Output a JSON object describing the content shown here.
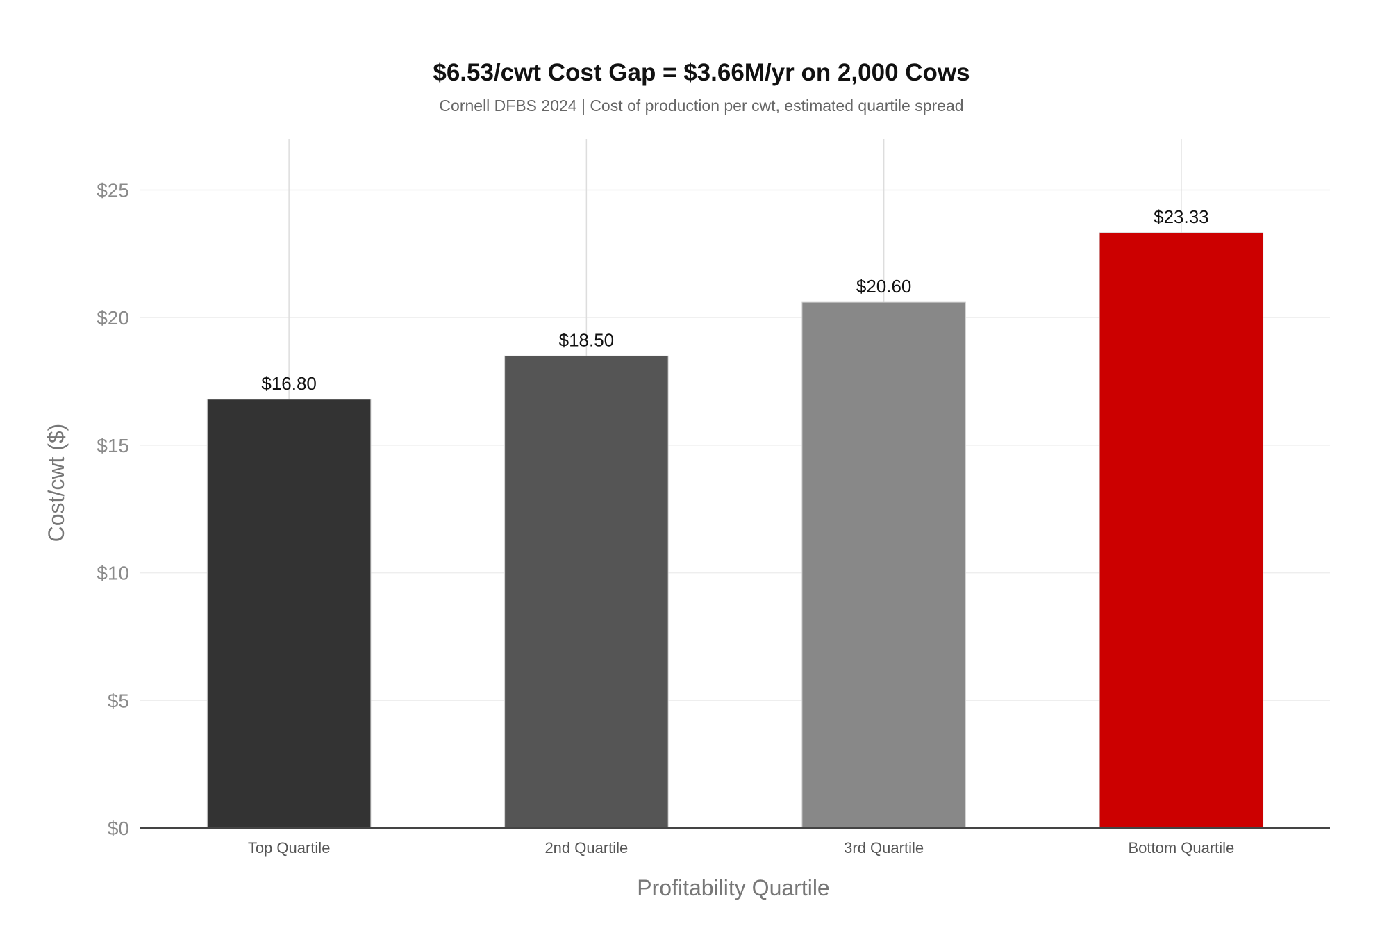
{
  "chart_data": {
    "type": "bar",
    "title": "$6.53/cwt Cost Gap = $3.66M/yr on 2,000 Cows",
    "subtitle": "Cornell DFBS 2024 | Cost of production per cwt, estimated quartile spread",
    "xlabel": "Profitability Quartile",
    "ylabel": "Cost/cwt ($)",
    "categories": [
      "Top Quartile",
      "2nd Quartile",
      "3rd Quartile",
      "Bottom Quartile"
    ],
    "values": [
      16.8,
      18.5,
      20.6,
      23.33
    ],
    "data_labels": [
      "$16.80",
      "$18.50",
      "$20.60",
      "$23.33"
    ],
    "colors": [
      "#333333",
      "#555555",
      "#888888",
      "#cc0000"
    ],
    "ylim": [
      0,
      27
    ],
    "yticks": [
      0,
      5,
      10,
      15,
      20,
      25
    ],
    "ytick_labels": [
      "$0",
      "$5",
      "$10",
      "$15",
      "$20",
      "$25"
    ],
    "grid": true,
    "legend": "none"
  }
}
